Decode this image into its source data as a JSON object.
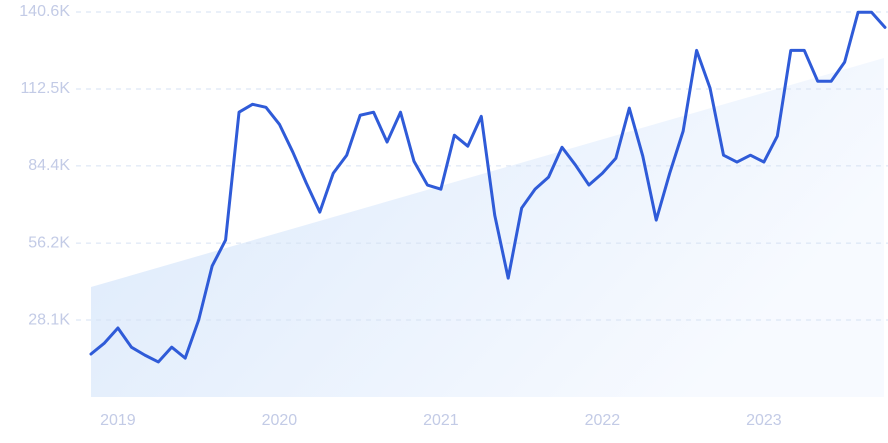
{
  "chart_data": {
    "type": "line",
    "categories": [
      null,
      null,
      "2019",
      null,
      null,
      null,
      null,
      null,
      null,
      null,
      null,
      null,
      null,
      null,
      "2020",
      null,
      null,
      null,
      null,
      null,
      null,
      null,
      null,
      null,
      null,
      null,
      "2021",
      null,
      null,
      null,
      null,
      null,
      null,
      null,
      null,
      null,
      null,
      null,
      "2022",
      null,
      null,
      null,
      null,
      null,
      null,
      null,
      null,
      null,
      null,
      null,
      "2023",
      null,
      null,
      null,
      null,
      null,
      null,
      null,
      null,
      null
    ],
    "series": [
      {
        "color": "#2f5bd8",
        "values": [
          15.7,
          19.7,
          25.2,
          18.2,
          15.3,
          12.8,
          18.2,
          14.2,
          28.1,
          47.8,
          57.3,
          104.0,
          106.9,
          105.8,
          99.6,
          89.4,
          78.1,
          67.5,
          81.7,
          88.3,
          102.9,
          104.0,
          93.1,
          104.0,
          86.1,
          77.4,
          75.9,
          95.6,
          91.6,
          102.5,
          66.4,
          43.4,
          69.0,
          75.9,
          80.3,
          91.2,
          84.7,
          77.4,
          81.7,
          87.2,
          105.5,
          88.0,
          64.6,
          81.7,
          97.1,
          126.6,
          112.8,
          88.3,
          85.8,
          88.3,
          85.8,
          95.3,
          126.6,
          126.6,
          115.3,
          115.3,
          122.3,
          140.5,
          140.5,
          135.0
        ]
      }
    ],
    "ylim": [
      0,
      140.6
    ],
    "yticks": [
      {
        "value": 28.1,
        "label": "28.1K"
      },
      {
        "value": 56.2,
        "label": "56.2K"
      },
      {
        "value": 84.4,
        "label": "84.4K"
      },
      {
        "value": 112.5,
        "label": "112.5K"
      },
      {
        "value": 140.6,
        "label": "140.6K"
      }
    ],
    "grid": true
  }
}
